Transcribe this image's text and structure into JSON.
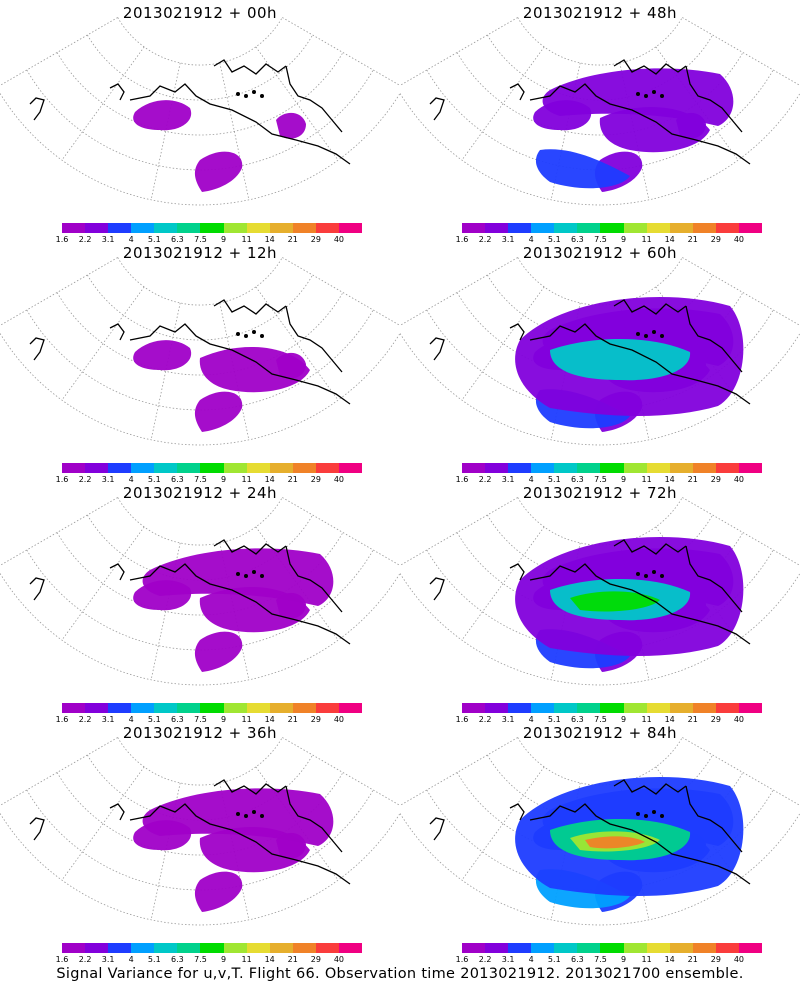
{
  "panels": [
    {
      "title": "2013021912 + 00h",
      "level": 0
    },
    {
      "title": "2013021912 + 48h",
      "level": 3
    },
    {
      "title": "2013021912 + 12h",
      "level": 1
    },
    {
      "title": "2013021912 + 60h",
      "level": 4
    },
    {
      "title": "2013021912 + 24h",
      "level": 2
    },
    {
      "title": "2013021912 + 72h",
      "level": 5
    },
    {
      "title": "2013021912 + 36h",
      "level": 2
    },
    {
      "title": "2013021912 + 84h",
      "level": 6
    }
  ],
  "colorbar": {
    "colors": [
      "#a000c8",
      "#8200dc",
      "#1e3cff",
      "#00a0ff",
      "#00c8c8",
      "#00d28c",
      "#00dc00",
      "#a0e632",
      "#e6dc32",
      "#e6af2d",
      "#f08228",
      "#fa3c3c",
      "#f00082"
    ],
    "labels": [
      "1.6",
      "2.2",
      "3.1",
      "4",
      "5.1",
      "6.3",
      "7.5",
      "9",
      "11",
      "14",
      "21",
      "29",
      "40"
    ]
  },
  "footer": "Signal Variance for u,v,T. Flight 66. Observation time 2013021912. 2013021700 ensemble."
}
